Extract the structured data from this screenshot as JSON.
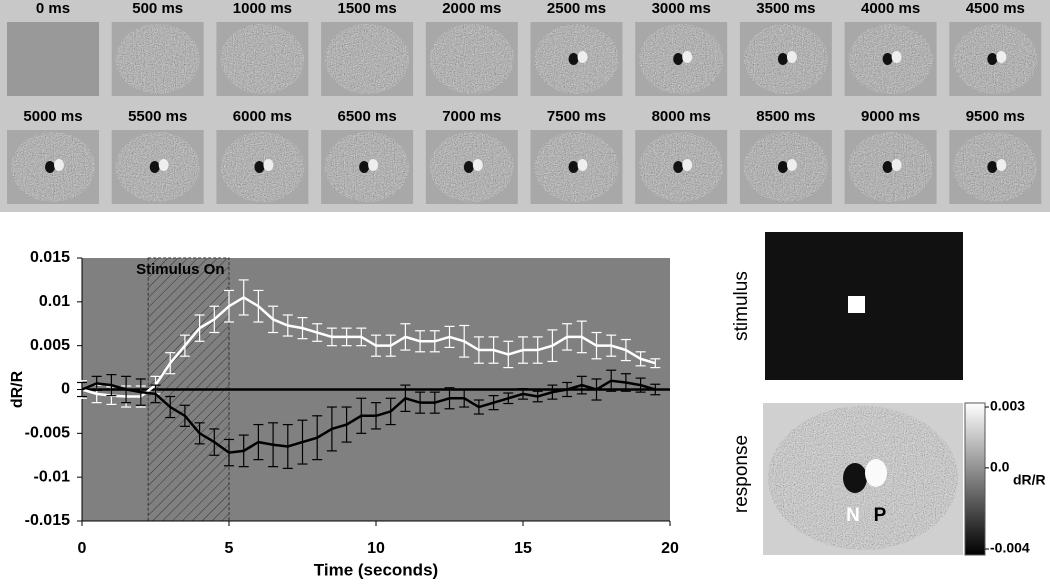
{
  "frames": {
    "labels": [
      "0 ms",
      "500 ms",
      "1000 ms",
      "1500 ms",
      "2000 ms",
      "2500 ms",
      "3000 ms",
      "3500 ms",
      "4000 ms",
      "4500 ms",
      "5000 ms",
      "5500 ms",
      "6000 ms",
      "6500 ms",
      "7000 ms",
      "7500 ms",
      "8000 ms",
      "8500 ms",
      "9000 ms",
      "9500 ms"
    ]
  },
  "chart_data": {
    "type": "line",
    "xlabel": "Time (seconds)",
    "ylabel": "dR/R",
    "annotation": "Stimulus On",
    "stimulus_span": [
      2.25,
      5
    ],
    "x": [
      0,
      0.5,
      1,
      1.5,
      2,
      2.5,
      3,
      3.5,
      4,
      4.5,
      5,
      5.5,
      6,
      6.5,
      7,
      7.5,
      8,
      8.5,
      9,
      9.5,
      10,
      10.5,
      11,
      11.5,
      12,
      12.5,
      13,
      13.5,
      14,
      14.5,
      15,
      15.5,
      16,
      16.5,
      17,
      17.5,
      18,
      18.5,
      19,
      19.5
    ],
    "series": [
      {
        "color": "#ffffff",
        "values": [
          0,
          -0.0005,
          -0.0007,
          -0.0008,
          -0.0008,
          0.0005,
          0.003,
          0.005,
          0.007,
          0.008,
          0.0095,
          0.0105,
          0.0095,
          0.008,
          0.0073,
          0.007,
          0.0065,
          0.006,
          0.006,
          0.006,
          0.005,
          0.005,
          0.006,
          0.0055,
          0.0055,
          0.006,
          0.0055,
          0.0045,
          0.0045,
          0.004,
          0.0045,
          0.0045,
          0.005,
          0.006,
          0.006,
          0.005,
          0.005,
          0.0045,
          0.0035,
          0.003
        ],
        "errors": [
          0.001,
          0.001,
          0.001,
          0.0012,
          0.0012,
          0.001,
          0.0012,
          0.0012,
          0.0015,
          0.0015,
          0.0018,
          0.002,
          0.0018,
          0.0015,
          0.0012,
          0.0012,
          0.001,
          0.001,
          0.001,
          0.001,
          0.0012,
          0.0012,
          0.0015,
          0.0012,
          0.0012,
          0.0012,
          0.0018,
          0.0015,
          0.0015,
          0.0015,
          0.0015,
          0.0015,
          0.0018,
          0.0015,
          0.0018,
          0.0015,
          0.0012,
          0.0012,
          0.0008,
          0.0005
        ]
      },
      {
        "color": "#000000",
        "values": [
          0,
          0.0007,
          0.0005,
          0,
          -0.0003,
          -0.0005,
          -0.002,
          -0.003,
          -0.005,
          -0.006,
          -0.0072,
          -0.007,
          -0.006,
          -0.0063,
          -0.0065,
          -0.006,
          -0.0055,
          -0.0045,
          -0.004,
          -0.003,
          -0.003,
          -0.0025,
          -0.001,
          -0.0015,
          -0.0015,
          -0.001,
          -0.001,
          -0.002,
          -0.0015,
          -0.001,
          -0.0005,
          -0.0008,
          -0.0003,
          0,
          0.0005,
          0,
          0.001,
          0.0008,
          0.0005,
          0
        ],
        "errors": [
          0.0008,
          0.0008,
          0.0012,
          0.0015,
          0.0015,
          0.001,
          0.0012,
          0.0012,
          0.0012,
          0.0015,
          0.0015,
          0.0018,
          0.002,
          0.0025,
          0.0025,
          0.0025,
          0.0025,
          0.0025,
          0.002,
          0.002,
          0.0015,
          0.0015,
          0.0015,
          0.0012,
          0.0012,
          0.0012,
          0.001,
          0.0008,
          0.0008,
          0.0006,
          0.0006,
          0.0006,
          0.0008,
          0.0008,
          0.001,
          0.0012,
          0.0012,
          0.001,
          0.0008,
          0.0006
        ]
      }
    ],
    "xlim": [
      0,
      20
    ],
    "xticks": [
      0,
      5,
      10,
      15,
      20
    ],
    "ylim": [
      -0.015,
      0.015
    ],
    "yticks": [
      0.015,
      0.01,
      0.005,
      0,
      -0.005,
      -0.01,
      -0.015
    ]
  },
  "panels": {
    "stimulus_label": "stimulus",
    "response_label": "response",
    "colorbar_ticks": [
      0.003,
      {
        "value": 0,
        "label": "0.0"
      },
      -0.004
    ],
    "colorbar_unit": "dR/R",
    "marker_n": "N",
    "marker_p": "P"
  }
}
